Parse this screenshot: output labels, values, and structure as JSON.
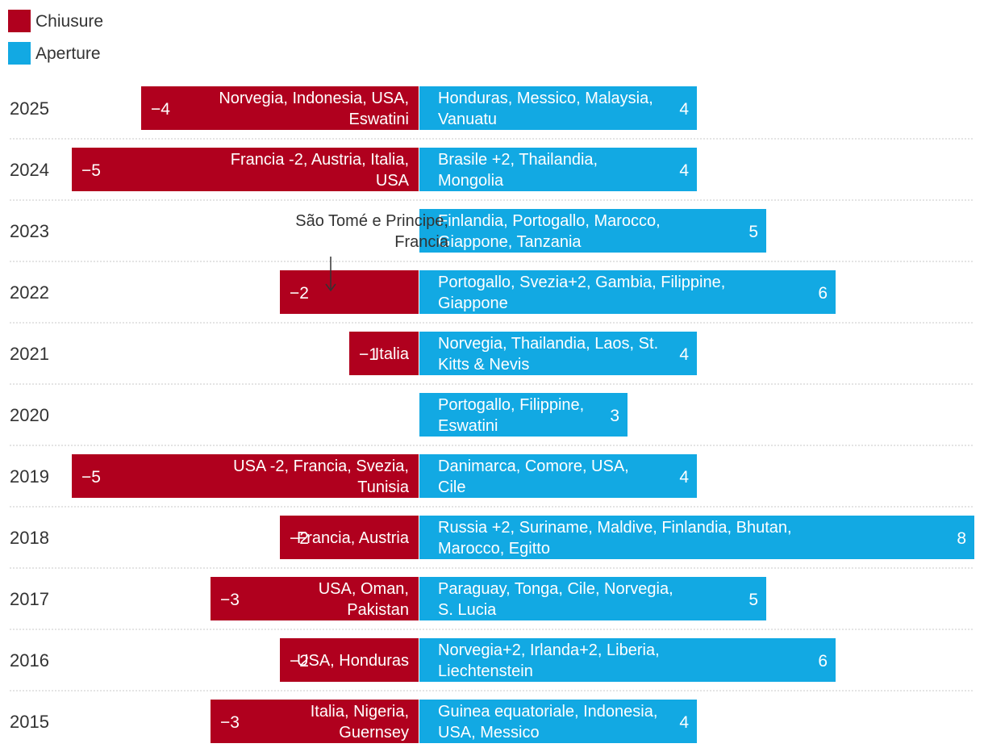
{
  "chart_data": {
    "type": "bar",
    "orientation": "horizontal-diverging",
    "colors": {
      "closures": "#b0001e",
      "openings": "#12a9e3",
      "text_on_bar": "#ffffff",
      "annotation": "#333333"
    },
    "legend": [
      {
        "key": "closures",
        "label": "Chiusure"
      },
      {
        "key": "openings",
        "label": "Aperture"
      }
    ],
    "value_range": [
      -5,
      8
    ],
    "rows": [
      {
        "year": "2025",
        "closures": -4,
        "closures_label": "−4",
        "closures_countries": [
          "Norvegia, Indonesia, USA,",
          "Eswatini"
        ],
        "openings": 4,
        "openings_label": "4",
        "openings_countries": [
          "Honduras, Messico, Malaysia,",
          "Vanuatu"
        ]
      },
      {
        "year": "2024",
        "closures": -5,
        "closures_label": "−5",
        "closures_countries": [
          "Francia -2, Austria, Italia,",
          "USA"
        ],
        "openings": 4,
        "openings_label": "4",
        "openings_countries": [
          "Brasile +2, Thailandia,",
          "Mongolia"
        ]
      },
      {
        "year": "2023",
        "closures": 0,
        "closures_label": "",
        "closures_countries": [],
        "openings": 5,
        "openings_label": "5",
        "openings_countries": [
          "Finlandia, Portogallo, Marocco,",
          "Giappone, Tanzania"
        ]
      },
      {
        "year": "2022",
        "closures": -2,
        "closures_label": "−2",
        "closures_countries": [],
        "openings": 6,
        "openings_label": "6",
        "openings_countries": [
          "Portogallo, Svezia+2, Gambia, Filippine,",
          "Giappone"
        ]
      },
      {
        "year": "2021",
        "closures": -1,
        "closures_label": "−1",
        "closures_countries": [
          "Italia"
        ],
        "openings": 4,
        "openings_label": "4",
        "openings_countries": [
          "Norvegia, Thailandia, Laos, St.",
          "Kitts & Nevis"
        ]
      },
      {
        "year": "2020",
        "closures": 0,
        "closures_label": "",
        "closures_countries": [],
        "openings": 3,
        "openings_label": "3",
        "openings_countries": [
          "Portogallo, Filippine,",
          "Eswatini"
        ]
      },
      {
        "year": "2019",
        "closures": -5,
        "closures_label": "−5",
        "closures_countries": [
          "USA -2, Francia, Svezia,",
          "Tunisia"
        ],
        "openings": 4,
        "openings_label": "4",
        "openings_countries": [
          "Danimarca, Comore, USA,",
          "Cile"
        ]
      },
      {
        "year": "2018",
        "closures": -2,
        "closures_label": "−2",
        "closures_countries": [
          "Francia, Austria"
        ],
        "openings": 8,
        "openings_label": "8",
        "openings_countries": [
          "Russia +2, Suriname, Maldive, Finlandia, Bhutan,",
          "Marocco, Egitto"
        ]
      },
      {
        "year": "2017",
        "closures": -3,
        "closures_label": "−3",
        "closures_countries": [
          "USA, Oman,",
          "Pakistan"
        ],
        "openings": 5,
        "openings_label": "5",
        "openings_countries": [
          "Paraguay, Tonga, Cile, Norvegia,",
          "S. Lucia"
        ]
      },
      {
        "year": "2016",
        "closures": -2,
        "closures_label": "−2",
        "closures_countries": [
          "USA, Honduras"
        ],
        "openings": 6,
        "openings_label": "6",
        "openings_countries": [
          "Norvegia+2, Irlanda+2, Liberia,",
          "Liechtenstein"
        ]
      },
      {
        "year": "2015",
        "closures": -3,
        "closures_label": "−3",
        "closures_countries": [
          "Italia, Nigeria,",
          "Guernsey"
        ],
        "openings": 4,
        "openings_label": "4",
        "openings_countries": [
          "Guinea equatoriale, Indonesia,",
          "USA, Messico"
        ]
      }
    ],
    "annotations": [
      {
        "year": "2022",
        "lines": [
          "São Tomé e Principe,",
          "Francia"
        ],
        "points_to": "closures"
      }
    ]
  }
}
